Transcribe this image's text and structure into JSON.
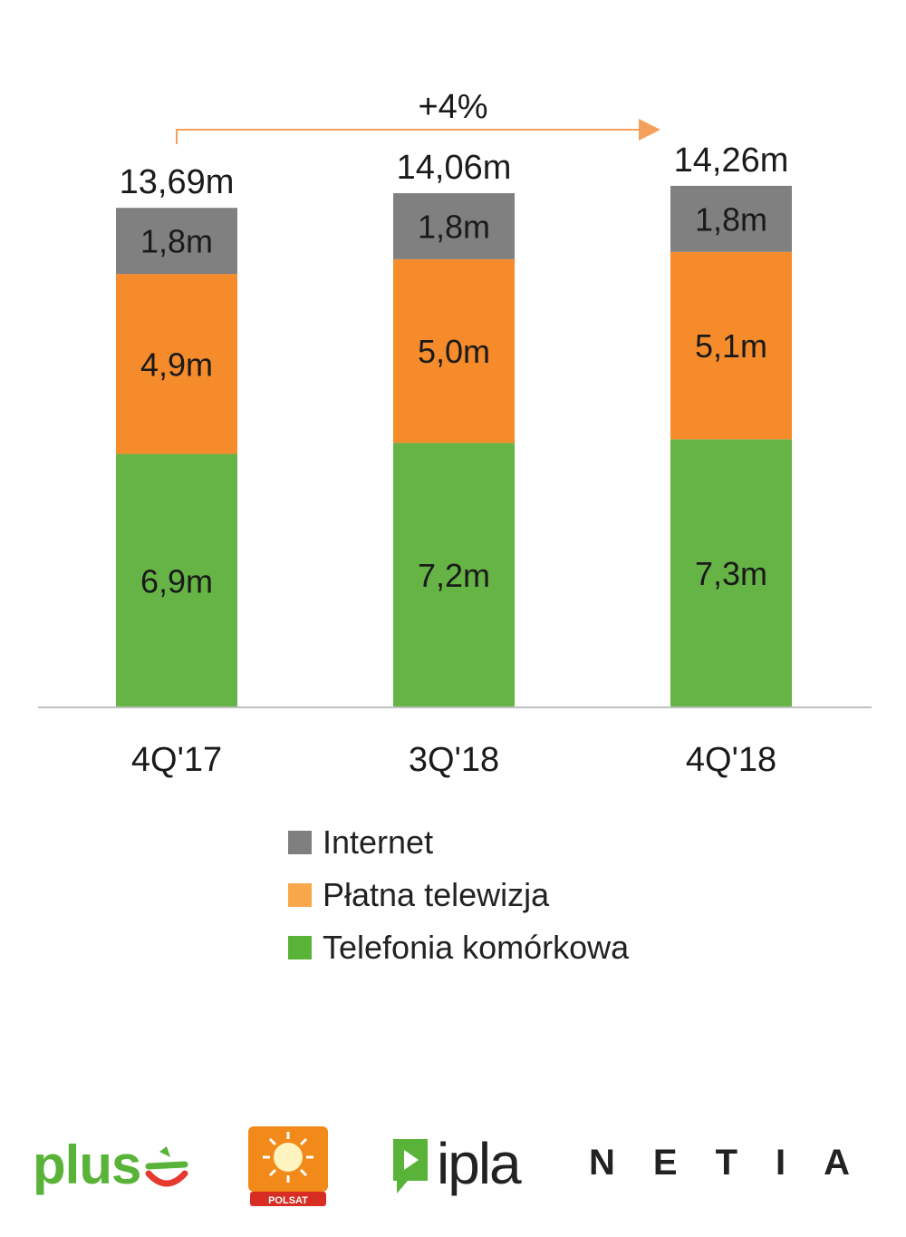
{
  "chart_data": {
    "type": "bar",
    "stacked": true,
    "categories": [
      "4Q'17",
      "3Q'18",
      "4Q'18"
    ],
    "series": [
      {
        "name": "Telefonia komórkowa",
        "values": [
          6.9,
          7.2,
          7.3
        ],
        "labels": [
          "6,9m",
          "7,2m",
          "7,3m"
        ],
        "color": "#66b445"
      },
      {
        "name": "Płatna telewizja",
        "values": [
          4.9,
          5.0,
          5.1
        ],
        "labels": [
          "4,9m",
          "5,0m",
          "5,1m"
        ],
        "color": "#f68b2c"
      },
      {
        "name": "Internet",
        "values": [
          1.8,
          1.8,
          1.8
        ],
        "labels": [
          "1,8m",
          "1,8m",
          "1,8m"
        ],
        "color": "#808080"
      }
    ],
    "totals": [
      13.69,
      14.06,
      14.26
    ],
    "total_labels": [
      "13,69m",
      "14,06m",
      "14,26m"
    ],
    "annotation": {
      "text": "+4%",
      "from": "4Q'17",
      "to": "4Q'18",
      "color": "#f5a05a"
    },
    "grid": false,
    "legend_position": "bottom"
  },
  "legend": [
    {
      "label": "Internet",
      "color": "#7f7f7f"
    },
    {
      "label": "Płatna telewizja",
      "color": "#f8a84a"
    },
    {
      "label": "Telefonia komórkowa",
      "color": "#5ab339"
    }
  ],
  "logos": {
    "plus": {
      "text": "plus",
      "color": "#5ab339",
      "accent": "#e53a2f"
    },
    "polsat": {
      "text": "POLSAT",
      "color": "#f28a1a",
      "accent": "#d82d23"
    },
    "ipla": {
      "text": "ipla",
      "color": "#5ab339"
    },
    "netia": {
      "text": "NETIA"
    }
  }
}
